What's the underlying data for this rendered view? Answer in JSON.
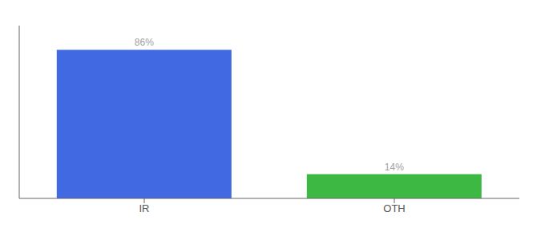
{
  "chart_data": {
    "type": "bar",
    "categories": [
      "IR",
      "OTH"
    ],
    "values": [
      86,
      14
    ],
    "value_labels": [
      "86%",
      "14%"
    ],
    "colors": [
      "#4169e1",
      "#3cb843"
    ],
    "ylim": [
      0,
      100
    ],
    "data_labels": true,
    "tick_labels": "x",
    "grid": false
  }
}
